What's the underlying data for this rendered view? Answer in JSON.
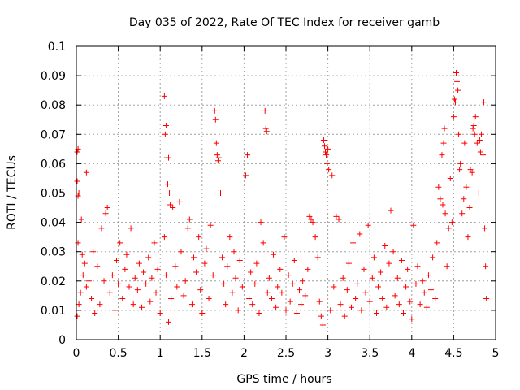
{
  "chart_data": {
    "type": "scatter",
    "title": "Day 035 of 2022, Rate Of TEC Index for receiver gamb",
    "xlabel": "GPS time / hours",
    "ylabel": "ROTI / TECUs",
    "xlim": [
      0,
      5
    ],
    "ylim": [
      0,
      0.1
    ],
    "x_ticks": [
      0,
      0.5,
      1,
      1.5,
      2,
      2.5,
      3,
      3.5,
      4,
      4.5,
      5
    ],
    "x_tick_labels": [
      "0",
      "0.5",
      "1",
      "1.5",
      "2",
      "2.5",
      "3",
      "3.5",
      "4",
      "4.5",
      "5"
    ],
    "y_ticks": [
      0,
      0.01,
      0.02,
      0.03,
      0.04,
      0.05,
      0.06,
      0.07,
      0.08,
      0.09,
      0.1
    ],
    "y_tick_labels": [
      "0",
      "0.01",
      "0.02",
      "0.03",
      "0.04",
      "0.05",
      "0.06",
      "0.07",
      "0.08",
      "0.09",
      "0.1"
    ],
    "grid": true,
    "marker": "+",
    "colors": {
      "points": "#ff0000",
      "grid": "#a0a0a0",
      "axes": "#000000"
    },
    "series": [
      {
        "name": "ROTI",
        "points": [
          [
            0.01,
            0.064
          ],
          [
            0.02,
            0.065
          ],
          [
            0.01,
            0.054
          ],
          [
            0.02,
            0.049
          ],
          [
            0.03,
            0.05
          ],
          [
            0.02,
            0.033
          ],
          [
            0.01,
            0.008
          ],
          [
            0.03,
            0.012
          ],
          [
            0.05,
            0.016
          ],
          [
            0.08,
            0.022
          ],
          [
            0.1,
            0.026
          ],
          [
            0.12,
            0.018
          ],
          [
            0.06,
            0.041
          ],
          [
            0.07,
            0.029
          ],
          [
            0.12,
            0.057
          ],
          [
            0.15,
            0.02
          ],
          [
            0.18,
            0.014
          ],
          [
            0.2,
            0.03
          ],
          [
            0.22,
            0.009
          ],
          [
            0.25,
            0.025
          ],
          [
            0.28,
            0.012
          ],
          [
            0.3,
            0.038
          ],
          [
            0.33,
            0.02
          ],
          [
            0.35,
            0.043
          ],
          [
            0.37,
            0.045
          ],
          [
            0.4,
            0.016
          ],
          [
            0.43,
            0.022
          ],
          [
            0.46,
            0.01
          ],
          [
            0.48,
            0.027
          ],
          [
            0.5,
            0.019
          ],
          [
            0.52,
            0.033
          ],
          [
            0.55,
            0.014
          ],
          [
            0.58,
            0.024
          ],
          [
            0.6,
            0.029
          ],
          [
            0.63,
            0.018
          ],
          [
            0.65,
            0.038
          ],
          [
            0.68,
            0.012
          ],
          [
            0.7,
            0.021
          ],
          [
            0.73,
            0.017
          ],
          [
            0.75,
            0.026
          ],
          [
            0.78,
            0.011
          ],
          [
            0.8,
            0.023
          ],
          [
            0.83,
            0.019
          ],
          [
            0.86,
            0.028
          ],
          [
            0.88,
            0.013
          ],
          [
            0.9,
            0.021
          ],
          [
            0.93,
            0.033
          ],
          [
            0.95,
            0.016
          ],
          [
            0.97,
            0.024
          ],
          [
            1.0,
            0.009
          ],
          [
            1.05,
            0.083
          ],
          [
            1.07,
            0.073
          ],
          [
            1.06,
            0.07
          ],
          [
            1.08,
            0.062
          ],
          [
            1.1,
            0.062
          ],
          [
            1.09,
            0.053
          ],
          [
            1.11,
            0.05
          ],
          [
            1.12,
            0.046
          ],
          [
            1.05,
            0.035
          ],
          [
            1.07,
            0.022
          ],
          [
            1.1,
            0.006
          ],
          [
            1.13,
            0.014
          ],
          [
            1.15,
            0.045
          ],
          [
            1.18,
            0.025
          ],
          [
            1.2,
            0.018
          ],
          [
            1.23,
            0.047
          ],
          [
            1.25,
            0.03
          ],
          [
            1.28,
            0.015
          ],
          [
            1.3,
            0.02
          ],
          [
            1.33,
            0.038
          ],
          [
            1.35,
            0.041
          ],
          [
            1.38,
            0.012
          ],
          [
            1.4,
            0.028
          ],
          [
            1.43,
            0.023
          ],
          [
            1.46,
            0.035
          ],
          [
            1.48,
            0.017
          ],
          [
            1.5,
            0.009
          ],
          [
            1.53,
            0.026
          ],
          [
            1.55,
            0.031
          ],
          [
            1.58,
            0.014
          ],
          [
            1.6,
            0.039
          ],
          [
            1.63,
            0.022
          ],
          [
            1.65,
            0.078
          ],
          [
            1.66,
            0.075
          ],
          [
            1.67,
            0.067
          ],
          [
            1.68,
            0.063
          ],
          [
            1.69,
            0.061
          ],
          [
            1.7,
            0.062
          ],
          [
            1.72,
            0.05
          ],
          [
            1.74,
            0.028
          ],
          [
            1.76,
            0.019
          ],
          [
            1.78,
            0.012
          ],
          [
            1.8,
            0.025
          ],
          [
            1.83,
            0.035
          ],
          [
            1.86,
            0.016
          ],
          [
            1.88,
            0.03
          ],
          [
            1.9,
            0.021
          ],
          [
            1.93,
            0.01
          ],
          [
            1.95,
            0.027
          ],
          [
            1.98,
            0.018
          ],
          [
            2.02,
            0.056
          ],
          [
            2.04,
            0.063
          ],
          [
            2.06,
            0.014
          ],
          [
            2.08,
            0.023
          ],
          [
            2.1,
            0.012
          ],
          [
            2.13,
            0.019
          ],
          [
            2.15,
            0.026
          ],
          [
            2.18,
            0.009
          ],
          [
            2.2,
            0.04
          ],
          [
            2.23,
            0.033
          ],
          [
            2.25,
            0.078
          ],
          [
            2.26,
            0.072
          ],
          [
            2.27,
            0.071
          ],
          [
            2.28,
            0.016
          ],
          [
            2.3,
            0.021
          ],
          [
            2.33,
            0.014
          ],
          [
            2.35,
            0.029
          ],
          [
            2.38,
            0.011
          ],
          [
            2.4,
            0.018
          ],
          [
            2.43,
            0.024
          ],
          [
            2.45,
            0.016
          ],
          [
            2.48,
            0.035
          ],
          [
            2.5,
            0.01
          ],
          [
            2.53,
            0.022
          ],
          [
            2.55,
            0.013
          ],
          [
            2.58,
            0.019
          ],
          [
            2.6,
            0.027
          ],
          [
            2.63,
            0.009
          ],
          [
            2.66,
            0.017
          ],
          [
            2.68,
            0.012
          ],
          [
            2.7,
            0.02
          ],
          [
            2.73,
            0.015
          ],
          [
            2.76,
            0.024
          ],
          [
            2.78,
            0.042
          ],
          [
            2.8,
            0.041
          ],
          [
            2.82,
            0.04
          ],
          [
            2.85,
            0.035
          ],
          [
            2.88,
            0.028
          ],
          [
            2.9,
            0.013
          ],
          [
            2.92,
            0.008
          ],
          [
            2.94,
            0.005
          ],
          [
            2.95,
            0.068
          ],
          [
            2.96,
            0.066
          ],
          [
            2.97,
            0.064
          ],
          [
            2.98,
            0.063
          ],
          [
            2.99,
            0.06
          ],
          [
            3.0,
            0.065
          ],
          [
            3.01,
            0.058
          ],
          [
            3.03,
            0.01
          ],
          [
            3.05,
            0.056
          ],
          [
            3.07,
            0.018
          ],
          [
            3.1,
            0.042
          ],
          [
            3.13,
            0.041
          ],
          [
            3.15,
            0.012
          ],
          [
            3.18,
            0.021
          ],
          [
            3.2,
            0.008
          ],
          [
            3.23,
            0.017
          ],
          [
            3.25,
            0.026
          ],
          [
            3.28,
            0.011
          ],
          [
            3.3,
            0.033
          ],
          [
            3.33,
            0.014
          ],
          [
            3.35,
            0.019
          ],
          [
            3.38,
            0.036
          ],
          [
            3.4,
            0.01
          ],
          [
            3.43,
            0.024
          ],
          [
            3.45,
            0.016
          ],
          [
            3.48,
            0.039
          ],
          [
            3.5,
            0.013
          ],
          [
            3.53,
            0.021
          ],
          [
            3.55,
            0.028
          ],
          [
            3.58,
            0.009
          ],
          [
            3.6,
            0.018
          ],
          [
            3.63,
            0.023
          ],
          [
            3.65,
            0.014
          ],
          [
            3.68,
            0.032
          ],
          [
            3.7,
            0.011
          ],
          [
            3.73,
            0.026
          ],
          [
            3.75,
            0.044
          ],
          [
            3.78,
            0.03
          ],
          [
            3.8,
            0.015
          ],
          [
            3.83,
            0.021
          ],
          [
            3.85,
            0.012
          ],
          [
            3.88,
            0.027
          ],
          [
            3.9,
            0.009
          ],
          [
            3.93,
            0.018
          ],
          [
            3.95,
            0.024
          ],
          [
            3.98,
            0.013
          ],
          [
            4.0,
            0.007
          ],
          [
            4.02,
            0.039
          ],
          [
            4.05,
            0.019
          ],
          [
            4.07,
            0.025
          ],
          [
            4.1,
            0.012
          ],
          [
            4.13,
            0.02
          ],
          [
            4.15,
            0.016
          ],
          [
            4.18,
            0.011
          ],
          [
            4.2,
            0.022
          ],
          [
            4.23,
            0.017
          ],
          [
            4.25,
            0.028
          ],
          [
            4.28,
            0.014
          ],
          [
            4.3,
            0.033
          ],
          [
            4.32,
            0.052
          ],
          [
            4.34,
            0.048
          ],
          [
            4.36,
            0.063
          ],
          [
            4.37,
            0.046
          ],
          [
            4.38,
            0.067
          ],
          [
            4.39,
            0.072
          ],
          [
            4.4,
            0.043
          ],
          [
            4.42,
            0.025
          ],
          [
            4.44,
            0.038
          ],
          [
            4.46,
            0.055
          ],
          [
            4.48,
            0.04
          ],
          [
            4.5,
            0.076
          ],
          [
            4.51,
            0.082
          ],
          [
            4.52,
            0.081
          ],
          [
            4.53,
            0.091
          ],
          [
            4.54,
            0.088
          ],
          [
            4.55,
            0.085
          ],
          [
            4.56,
            0.07
          ],
          [
            4.57,
            0.058
          ],
          [
            4.58,
            0.06
          ],
          [
            4.6,
            0.043
          ],
          [
            4.62,
            0.048
          ],
          [
            4.63,
            0.067
          ],
          [
            4.65,
            0.052
          ],
          [
            4.67,
            0.035
          ],
          [
            4.69,
            0.045
          ],
          [
            4.7,
            0.058
          ],
          [
            4.72,
            0.057
          ],
          [
            4.73,
            0.072
          ],
          [
            4.74,
            0.073
          ],
          [
            4.75,
            0.07
          ],
          [
            4.76,
            0.076
          ],
          [
            4.78,
            0.067
          ],
          [
            4.8,
            0.05
          ],
          [
            4.81,
            0.068
          ],
          [
            4.82,
            0.064
          ],
          [
            4.83,
            0.07
          ],
          [
            4.85,
            0.063
          ],
          [
            4.86,
            0.081
          ],
          [
            4.87,
            0.038
          ],
          [
            4.88,
            0.025
          ],
          [
            4.89,
            0.014
          ]
        ]
      }
    ]
  }
}
